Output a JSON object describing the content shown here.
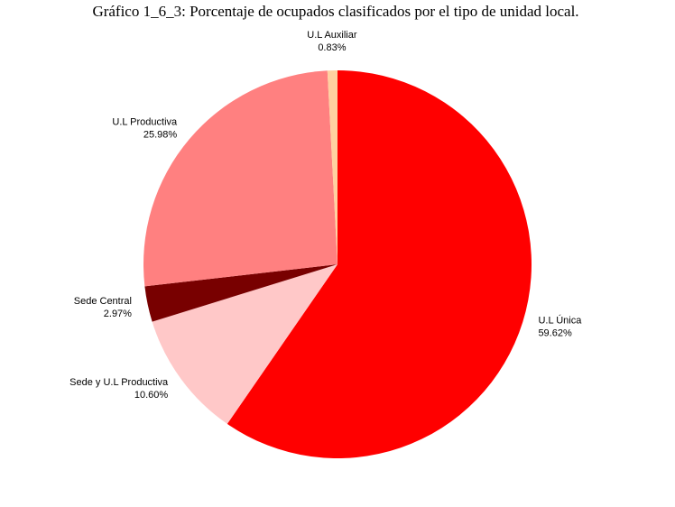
{
  "chart_data": {
    "type": "pie",
    "title": "Gráfico 1_6_3: Porcentaje de ocupados clasificados por el tipo de unidad local.",
    "categories": [
      "U.L Única",
      "Sede y U.L Productiva",
      "Sede Central",
      "U.L Productiva",
      "U.L Auxiliar"
    ],
    "values": [
      59.62,
      10.6,
      2.97,
      25.98,
      0.83
    ],
    "value_labels": [
      "59.62%",
      "10.60%",
      "2.97%",
      "25.98%",
      "0.83%"
    ],
    "colors": [
      "#ff0000",
      "#ffc8c8",
      "#780000",
      "#ff8080",
      "#ffd0a0"
    ]
  }
}
